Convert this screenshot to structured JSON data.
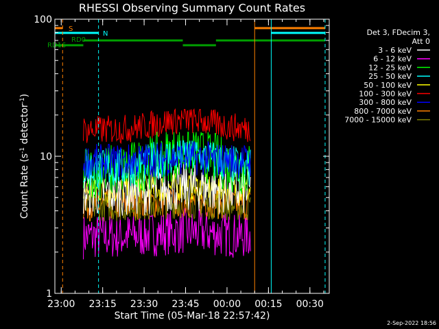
{
  "chart_data": {
    "type": "line",
    "title": "RHESSI Observing Summary Count Rates",
    "xlabel": "Start Time (05-Mar-18 22:57:42)",
    "ylabel": "Count Rate (s⁻¹ detector⁻¹)",
    "ylabel_parts": {
      "main": "Count Rate (s",
      "sup1": "-1",
      "mid": " detector",
      "sup2": "-1",
      "end": ")"
    },
    "y_scale": "log",
    "ylim": [
      1,
      100
    ],
    "y_ticks": [
      "1",
      "10",
      "100"
    ],
    "xlim": [
      "22:57:42",
      "00:37:00"
    ],
    "x_ticks": [
      "23:00",
      "23:15",
      "23:30",
      "23:45",
      "00:00",
      "00:15",
      "00:30"
    ],
    "legend_header": [
      "Det 3, FDecim 3,",
      "Att 0"
    ],
    "series": [
      {
        "name": "3 - 6 keV",
        "color": "#ffffff",
        "range": [
          3,
          10
        ]
      },
      {
        "name": "6 - 12 keV",
        "color": "#ff00ff",
        "range": [
          1.5,
          4.5
        ]
      },
      {
        "name": "12 - 25 keV",
        "color": "#00ff00",
        "range": [
          4,
          15
        ]
      },
      {
        "name": "25 - 50 keV",
        "color": "#00ffff",
        "range": [
          5,
          13
        ]
      },
      {
        "name": "50 - 100 keV",
        "color": "#ffff00",
        "range": [
          4,
          8
        ]
      },
      {
        "name": "100 - 300 keV",
        "color": "#ff0000",
        "range": [
          11,
          22
        ]
      },
      {
        "name": "300 - 800 keV",
        "color": "#0000ff",
        "range": [
          6,
          14
        ]
      },
      {
        "name": "800 - 7000 keV",
        "color": "#ff8000",
        "range": [
          3,
          6.5
        ]
      },
      {
        "name": "7000 - 15000 keV",
        "color": "#808000",
        "range": [
          3,
          6
        ]
      }
    ],
    "data_span": [
      "23:08:00",
      "00:08:30"
    ],
    "flags": [
      {
        "label": "S",
        "color": "#ff8000",
        "segments": [
          [
            "22:57:42",
            "23:00:30"
          ],
          [
            "00:10:00",
            "00:35:30"
          ]
        ]
      },
      {
        "label": "N",
        "color": "#00ffff",
        "segments": [
          [
            "22:57:42",
            "23:13:30"
          ],
          [
            "00:16:00",
            "00:35:30"
          ]
        ]
      },
      {
        "label": "RD0",
        "color": "#00a000",
        "segments": [
          [
            "23:08:00",
            "23:44:00"
          ],
          [
            "23:56:00",
            "00:35:30"
          ]
        ]
      },
      {
        "label": "RD16",
        "color": "#00a000",
        "segments": [
          [
            "22:57:42",
            "23:08:00"
          ],
          [
            "23:44:00",
            "23:56:00"
          ]
        ]
      }
    ],
    "vlines": [
      {
        "time": "22:57:42",
        "color": "#00ffff",
        "style": "solid"
      },
      {
        "time": "23:00:30",
        "color": "#ff8000",
        "style": "dashed"
      },
      {
        "time": "23:13:30",
        "color": "#00ffff",
        "style": "dashed"
      },
      {
        "time": "00:10:00",
        "color": "#ff8000",
        "style": "solid"
      },
      {
        "time": "00:16:00",
        "color": "#00ffff",
        "style": "solid"
      },
      {
        "time": "00:35:30",
        "color": "#00ffff",
        "style": "dashed"
      }
    ],
    "grid": false,
    "legend_placement": "right"
  },
  "footer_date": "2-Sep-2022 18:56"
}
